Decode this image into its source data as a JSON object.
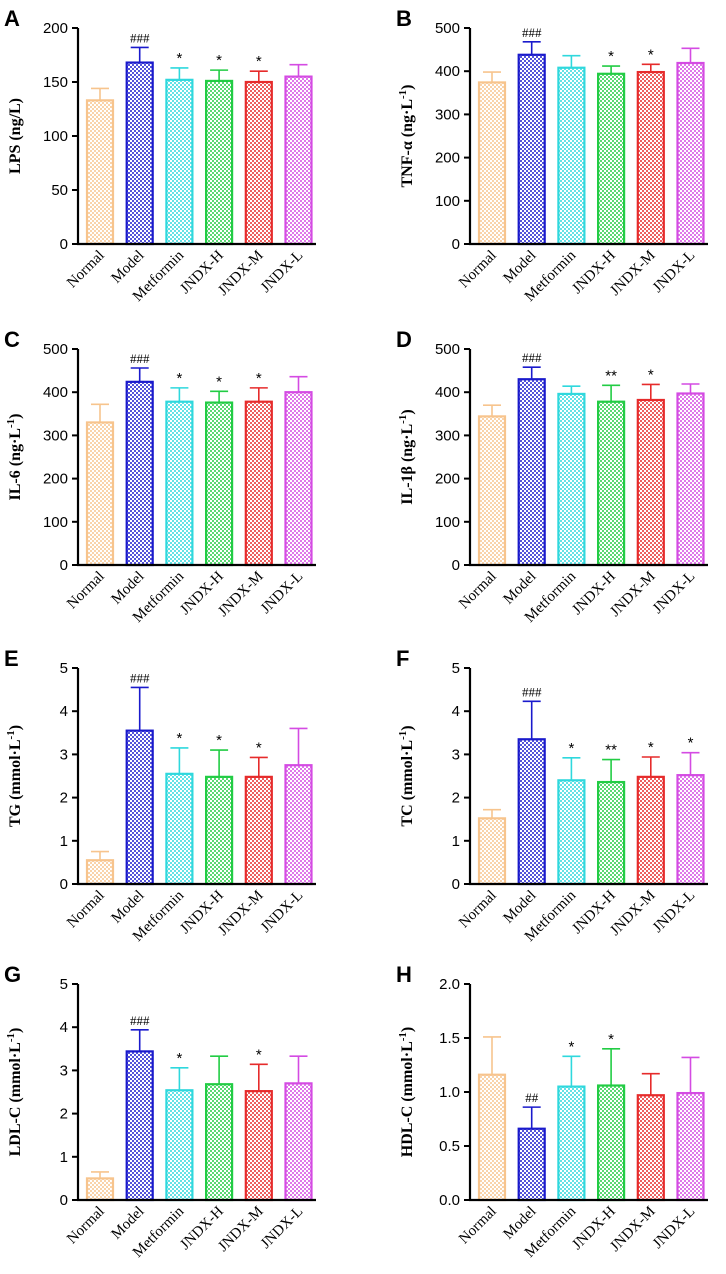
{
  "palette": {
    "Normal": "#f7c48d",
    "Model": "#1a1acc",
    "Metformin": "#2fd8dd",
    "JNDX-H": "#22cc44",
    "JNDX-M": "#e62b2b",
    "JNDX-L": "#d44be3"
  },
  "chart_data": [
    {
      "panel": "A",
      "type": "bar",
      "ylabel": "LPS (ng/L)",
      "ylim": [
        0,
        200
      ],
      "yticks": [
        "0",
        "50",
        "100",
        "150",
        "200"
      ],
      "ytick_values": [
        0,
        50,
        100,
        150,
        200
      ],
      "categories": [
        "Normal",
        "Model",
        "Metformin",
        "JNDX-H",
        "JNDX-M",
        "JNDX-L"
      ],
      "values": [
        133,
        168,
        152,
        151,
        150,
        155
      ],
      "errors": [
        11,
        14,
        11,
        10,
        10,
        11
      ],
      "significance": [
        "",
        "###",
        "*",
        "*",
        "*",
        ""
      ]
    },
    {
      "panel": "B",
      "type": "bar",
      "ylabel": "TNF-α (ng·L",
      "ylabel_sup": "-1",
      "ylabel_close": ")",
      "ylim": [
        0,
        500
      ],
      "yticks": [
        "0",
        "100",
        "200",
        "300",
        "400",
        "500"
      ],
      "ytick_values": [
        0,
        100,
        200,
        300,
        400,
        500
      ],
      "categories": [
        "Normal",
        "Model",
        "Metformin",
        "JNDX-H",
        "JNDX-M",
        "JNDX-L"
      ],
      "values": [
        374,
        438,
        408,
        394,
        398,
        419
      ],
      "errors": [
        24,
        30,
        28,
        18,
        18,
        34
      ],
      "significance": [
        "",
        "###",
        "",
        "*",
        "*",
        ""
      ]
    },
    {
      "panel": "C",
      "type": "bar",
      "ylabel": "IL-6 (ng·L",
      "ylabel_sup": "-1",
      "ylabel_close": ")",
      "ylim": [
        0,
        500
      ],
      "yticks": [
        "0",
        "100",
        "200",
        "300",
        "400",
        "500"
      ],
      "ytick_values": [
        0,
        100,
        200,
        300,
        400,
        500
      ],
      "categories": [
        "Normal",
        "Model",
        "Metformin",
        "JNDX-H",
        "JNDX-M",
        "JNDX-L"
      ],
      "values": [
        330,
        424,
        378,
        376,
        378,
        400
      ],
      "errors": [
        42,
        32,
        32,
        26,
        32,
        36
      ],
      "significance": [
        "",
        "###",
        "*",
        "*",
        "*",
        ""
      ]
    },
    {
      "panel": "D",
      "type": "bar",
      "ylabel": "IL-1β (ng·L",
      "ylabel_sup": "-1",
      "ylabel_close": ")",
      "ylim": [
        0,
        500
      ],
      "yticks": [
        "0",
        "100",
        "200",
        "300",
        "400",
        "500"
      ],
      "ytick_values": [
        0,
        100,
        200,
        300,
        400,
        500
      ],
      "categories": [
        "Normal",
        "Model",
        "Metformin",
        "JNDX-H",
        "JNDX-M",
        "JNDX-L"
      ],
      "values": [
        344,
        430,
        396,
        378,
        382,
        397
      ],
      "errors": [
        26,
        28,
        18,
        38,
        36,
        22
      ],
      "significance": [
        "",
        "###",
        "",
        "**",
        "*",
        ""
      ]
    },
    {
      "panel": "E",
      "type": "bar",
      "ylabel": "TG (mmol·L",
      "ylabel_sup": "-1",
      "ylabel_close": ")",
      "ylim": [
        0,
        5
      ],
      "yticks": [
        "0",
        "1",
        "2",
        "3",
        "4",
        "5"
      ],
      "ytick_values": [
        0,
        1,
        2,
        3,
        4,
        5
      ],
      "categories": [
        "Normal",
        "Model",
        "Metformin",
        "JNDX-H",
        "JNDX-M",
        "JNDX-L"
      ],
      "values": [
        0.55,
        3.55,
        2.55,
        2.48,
        2.48,
        2.75
      ],
      "errors": [
        0.2,
        1.0,
        0.6,
        0.62,
        0.45,
        0.85
      ],
      "significance": [
        "",
        "###",
        "*",
        "*",
        "*",
        ""
      ]
    },
    {
      "panel": "F",
      "type": "bar",
      "ylabel": "TC (mmol·L",
      "ylabel_sup": "-1",
      "ylabel_close": ")",
      "ylim": [
        0,
        5
      ],
      "yticks": [
        "0",
        "1",
        "2",
        "3",
        "4",
        "5"
      ],
      "ytick_values": [
        0,
        1,
        2,
        3,
        4,
        5
      ],
      "categories": [
        "Normal",
        "Model",
        "Metformin",
        "JNDX-H",
        "JNDX-M",
        "JNDX-L"
      ],
      "values": [
        1.52,
        3.35,
        2.4,
        2.36,
        2.48,
        2.52
      ],
      "errors": [
        0.2,
        0.88,
        0.52,
        0.52,
        0.46,
        0.52
      ],
      "significance": [
        "",
        "###",
        "*",
        "**",
        "*",
        "*"
      ]
    },
    {
      "panel": "G",
      "type": "bar",
      "ylabel": "LDL-C (mmol·L",
      "ylabel_sup": "-1",
      "ylabel_close": ")",
      "ylim": [
        0,
        5
      ],
      "yticks": [
        "0",
        "1",
        "2",
        "3",
        "4",
        "5"
      ],
      "ytick_values": [
        0,
        1,
        2,
        3,
        4,
        5
      ],
      "categories": [
        "Normal",
        "Model",
        "Metformin",
        "JNDX-H",
        "JNDX-M",
        "JNDX-L"
      ],
      "values": [
        0.5,
        3.44,
        2.54,
        2.68,
        2.52,
        2.7
      ],
      "errors": [
        0.15,
        0.5,
        0.52,
        0.65,
        0.62,
        0.63
      ],
      "significance": [
        "",
        "###",
        "*",
        "",
        "*",
        ""
      ]
    },
    {
      "panel": "H",
      "type": "bar",
      "ylabel": "HDL-C (mmol·L",
      "ylabel_sup": "-1",
      "ylabel_close": ")",
      "ylim": [
        0,
        2
      ],
      "yticks": [
        "0.0",
        "0.5",
        "1.0",
        "1.5",
        "2.0"
      ],
      "ytick_values": [
        0,
        0.5,
        1,
        1.5,
        2
      ],
      "categories": [
        "Normal",
        "Model",
        "Metformin",
        "JNDX-H",
        "JNDX-M",
        "JNDX-L"
      ],
      "values": [
        1.16,
        0.66,
        1.05,
        1.06,
        0.97,
        0.99
      ],
      "errors": [
        0.35,
        0.2,
        0.28,
        0.34,
        0.2,
        0.33
      ],
      "significance": [
        "",
        "##",
        "*",
        "*",
        "",
        ""
      ]
    }
  ]
}
